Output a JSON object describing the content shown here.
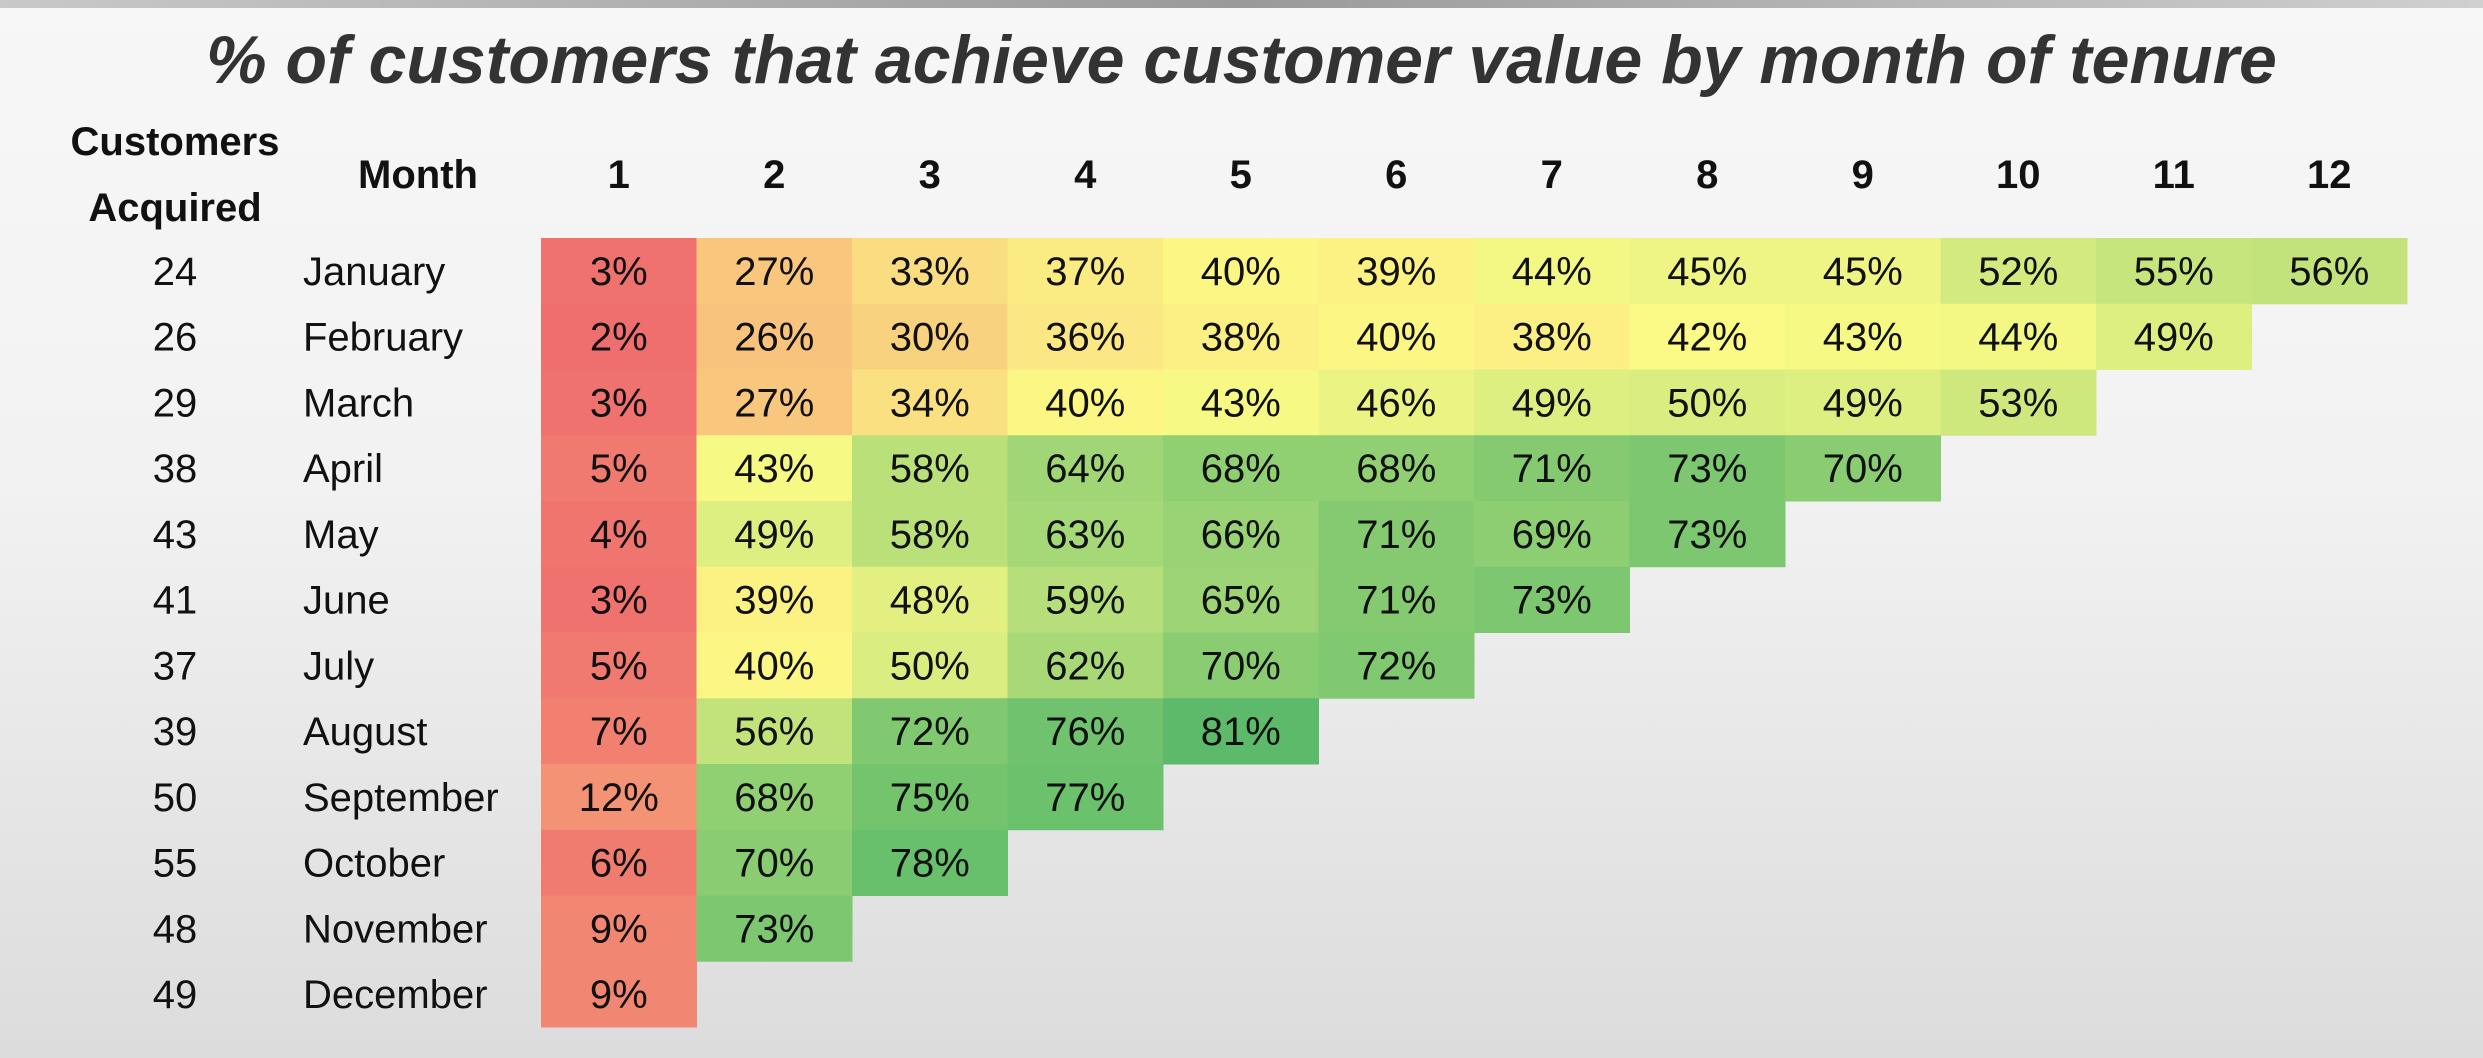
{
  "title": "% of customers that achieve customer value by month of tenure",
  "headers": {
    "customers_acquired_line1": "Customers",
    "customers_acquired_line2": "Acquired",
    "month": "Month"
  },
  "colors": {
    "low": "#ef6e6e",
    "mid": "#fdfb86",
    "high": "#5cba6a"
  },
  "chart_data": {
    "type": "heatmap",
    "title": "% of customers that achieve customer value by month of tenure",
    "columns": [
      "1",
      "2",
      "3",
      "4",
      "5",
      "6",
      "7",
      "8",
      "9",
      "10",
      "11",
      "12"
    ],
    "rows": [
      {
        "month": "January",
        "customers_acquired": 24,
        "values": [
          3,
          27,
          33,
          37,
          40,
          39,
          44,
          45,
          45,
          52,
          55,
          56
        ]
      },
      {
        "month": "February",
        "customers_acquired": 26,
        "values": [
          2,
          26,
          30,
          36,
          38,
          40,
          38,
          42,
          43,
          44,
          49
        ]
      },
      {
        "month": "March",
        "customers_acquired": 29,
        "values": [
          3,
          27,
          34,
          40,
          43,
          46,
          49,
          50,
          49,
          53
        ]
      },
      {
        "month": "April",
        "customers_acquired": 38,
        "values": [
          5,
          43,
          58,
          64,
          68,
          68,
          71,
          73,
          70
        ]
      },
      {
        "month": "May",
        "customers_acquired": 43,
        "values": [
          4,
          49,
          58,
          63,
          66,
          71,
          69,
          73
        ]
      },
      {
        "month": "June",
        "customers_acquired": 41,
        "values": [
          3,
          39,
          48,
          59,
          65,
          71,
          73
        ]
      },
      {
        "month": "July",
        "customers_acquired": 37,
        "values": [
          5,
          40,
          50,
          62,
          70,
          72
        ]
      },
      {
        "month": "August",
        "customers_acquired": 39,
        "values": [
          7,
          56,
          72,
          76,
          81
        ]
      },
      {
        "month": "September",
        "customers_acquired": 50,
        "values": [
          12,
          68,
          75,
          77
        ]
      },
      {
        "month": "October",
        "customers_acquired": 55,
        "values": [
          6,
          70,
          78
        ]
      },
      {
        "month": "November",
        "customers_acquired": 48,
        "values": [
          9,
          73
        ]
      },
      {
        "month": "December",
        "customers_acquired": 49,
        "values": [
          9
        ]
      }
    ],
    "value_suffix": "%"
  }
}
